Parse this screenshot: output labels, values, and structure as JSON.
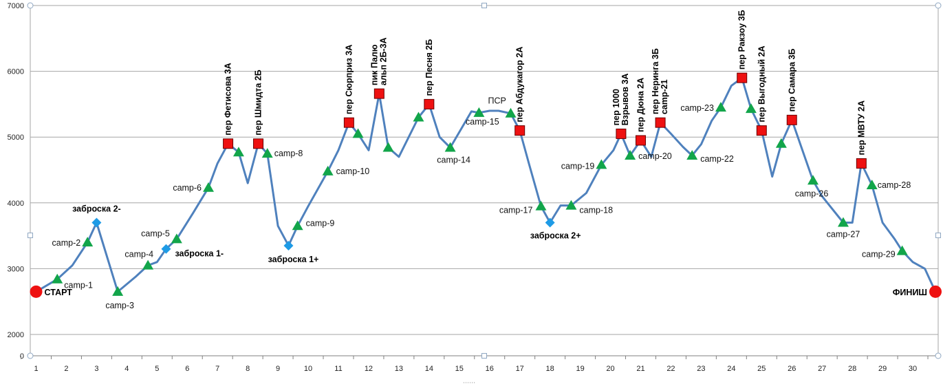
{
  "chart_data": {
    "type": "line",
    "title": "",
    "xlabel": "",
    "ylabel": "",
    "xlim": [
      0.5,
      31
    ],
    "ylim": [
      0,
      7000
    ],
    "broken_y_axis": true,
    "y_ticks": [
      "0",
      "2000",
      "3000",
      "4000",
      "5000",
      "6000",
      "7000"
    ],
    "x_ticks": [
      "1",
      "2",
      "3",
      "4",
      "5",
      "6",
      "7",
      "8",
      "9",
      "10",
      "11",
      "12",
      "13",
      "14",
      "15",
      "16",
      "17",
      "18",
      "19",
      "20",
      "21",
      "22",
      "23",
      "24",
      "25",
      "26",
      "27",
      "28",
      "29",
      "30"
    ],
    "grid": "horizontal",
    "line_color": "#4f81bd",
    "marker_colors": {
      "camp": "#12a54a",
      "pass": "#ee1111",
      "cache": "#1e9be6",
      "endpoint": "#ee1111"
    },
    "series": [
      {
        "points": [
          {
            "x": 1.0,
            "y": 2650
          },
          {
            "x": 1.7,
            "y": 2840,
            "kind": "camp",
            "label": "camp-1"
          },
          {
            "x": 2.2,
            "y": 3050
          },
          {
            "x": 2.7,
            "y": 3400,
            "kind": "camp",
            "label": "camp-2"
          },
          {
            "x": 3.0,
            "y": 3700,
            "kind": "cache",
            "label": "заброска 2-"
          },
          {
            "x": 3.7,
            "y": 2650,
            "kind": "camp",
            "label": "camp-3"
          },
          {
            "x": 4.3,
            "y": 2880
          },
          {
            "x": 4.7,
            "y": 3050,
            "kind": "camp",
            "label": "camp-4"
          },
          {
            "x": 5.0,
            "y": 3100
          },
          {
            "x": 5.3,
            "y": 3300,
            "kind": "cache",
            "label": "заброска 1-"
          },
          {
            "x": 5.65,
            "y": 3450,
            "kind": "camp",
            "label": "camp-5"
          },
          {
            "x": 6.2,
            "y": 3850
          },
          {
            "x": 6.7,
            "y": 4230,
            "kind": "camp",
            "label": "camp-6"
          },
          {
            "x": 7.0,
            "y": 4600
          },
          {
            "x": 7.35,
            "y": 4900,
            "kind": "pass",
            "label": "пер Фетисова  3А"
          },
          {
            "x": 7.7,
            "y": 4770,
            "kind": "camp"
          },
          {
            "x": 8.0,
            "y": 4300
          },
          {
            "x": 8.35,
            "y": 4900,
            "kind": "pass",
            "label": "пер Шмидта 2Б"
          },
          {
            "x": 8.65,
            "y": 4750,
            "kind": "camp",
            "label": "camp-8"
          },
          {
            "x": 9.0,
            "y": 3650
          },
          {
            "x": 9.35,
            "y": 3350,
            "kind": "cache",
            "label": "заброска 1+"
          },
          {
            "x": 9.65,
            "y": 3650,
            "kind": "camp",
            "label": "camp-9"
          },
          {
            "x": 10.0,
            "y": 3950
          },
          {
            "x": 10.65,
            "y": 4480,
            "kind": "camp",
            "label": "camp-10"
          },
          {
            "x": 11.0,
            "y": 4800
          },
          {
            "x": 11.35,
            "y": 5220,
            "kind": "pass",
            "label": "пер Сюрприз  3А"
          },
          {
            "x": 11.65,
            "y": 5050,
            "kind": "camp"
          },
          {
            "x": 12.0,
            "y": 4800
          },
          {
            "x": 12.35,
            "y": 5660,
            "kind": "pass",
            "label": "пик Палю",
            "label2": "альп 2Б-3А"
          },
          {
            "x": 12.65,
            "y": 4840,
            "kind": "camp"
          },
          {
            "x": 13.0,
            "y": 4700
          },
          {
            "x": 13.65,
            "y": 5300,
            "kind": "camp"
          },
          {
            "x": 14.0,
            "y": 5500,
            "kind": "pass",
            "label": "пер Песня  2Б"
          },
          {
            "x": 14.35,
            "y": 5000
          },
          {
            "x": 14.7,
            "y": 4840,
            "kind": "camp",
            "label": "camp-14"
          },
          {
            "x": 15.4,
            "y": 5390
          },
          {
            "x": 15.65,
            "y": 5370,
            "kind": "camp",
            "label": "camp-15"
          },
          {
            "x": 16.0,
            "y": 5400
          },
          {
            "x": 16.3,
            "y": 5400
          },
          {
            "x": 16.7,
            "y": 5360,
            "kind": "camp"
          },
          {
            "x": 17.0,
            "y": 5100,
            "kind": "pass",
            "label": "пер Абдукагор  2А"
          },
          {
            "x": 17.3,
            "y": 4600
          },
          {
            "x": 17.7,
            "y": 3950,
            "kind": "camp",
            "label": "camp-17"
          },
          {
            "x": 18.0,
            "y": 3700,
            "kind": "cache",
            "label": "заброска 2+"
          },
          {
            "x": 18.35,
            "y": 3960
          },
          {
            "x": 18.7,
            "y": 3960,
            "kind": "camp",
            "label": "camp-18"
          },
          {
            "x": 19.2,
            "y": 4150
          },
          {
            "x": 19.7,
            "y": 4580,
            "kind": "camp",
            "label": "camp-19"
          },
          {
            "x": 20.1,
            "y": 4800
          },
          {
            "x": 20.35,
            "y": 5050,
            "kind": "pass",
            "label": "пер 1000",
            "label2": "Взрывов 3А"
          },
          {
            "x": 20.65,
            "y": 4720,
            "kind": "camp",
            "label": "camp-20"
          },
          {
            "x": 21.0,
            "y": 4950,
            "kind": "pass",
            "label": "пер Дюна  2А"
          },
          {
            "x": 21.35,
            "y": 4700
          },
          {
            "x": 21.65,
            "y": 5220,
            "kind": "pass",
            "label": "пер Неринга  3Б",
            "label2": "camp-21"
          },
          {
            "x": 22.0,
            "y": 5050
          },
          {
            "x": 22.4,
            "y": 4850
          },
          {
            "x": 22.7,
            "y": 4720,
            "kind": "camp",
            "label": "camp-22"
          },
          {
            "x": 23.0,
            "y": 4890
          },
          {
            "x": 23.35,
            "y": 5250
          },
          {
            "x": 23.65,
            "y": 5450,
            "kind": "camp",
            "label": "camp-23"
          },
          {
            "x": 24.0,
            "y": 5780
          },
          {
            "x": 24.35,
            "y": 5900,
            "kind": "pass",
            "label": "пер Ракзоу 3Б"
          },
          {
            "x": 24.65,
            "y": 5430,
            "kind": "camp"
          },
          {
            "x": 25.0,
            "y": 5100,
            "kind": "pass",
            "label": "пер Выгодный  2А"
          },
          {
            "x": 25.35,
            "y": 4400
          },
          {
            "x": 25.65,
            "y": 4900,
            "kind": "camp"
          },
          {
            "x": 26.0,
            "y": 5260,
            "kind": "pass",
            "label": "пер Самара  3Б"
          },
          {
            "x": 26.35,
            "y": 4800
          },
          {
            "x": 26.7,
            "y": 4340,
            "kind": "camp",
            "label": "camp-26"
          },
          {
            "x": 27.0,
            "y": 4100
          },
          {
            "x": 27.7,
            "y": 3700,
            "kind": "camp",
            "label": "camp-27"
          },
          {
            "x": 28.0,
            "y": 3700
          },
          {
            "x": 28.3,
            "y": 4600,
            "kind": "pass",
            "label": "пер МВТУ 2А"
          },
          {
            "x": 28.65,
            "y": 4270,
            "kind": "camp",
            "label": "camp-28"
          },
          {
            "x": 29.0,
            "y": 3700
          },
          {
            "x": 29.4,
            "y": 3450
          },
          {
            "x": 29.65,
            "y": 3270,
            "kind": "camp",
            "label": "camp-29"
          },
          {
            "x": 30.0,
            "y": 3100
          },
          {
            "x": 30.4,
            "y": 3000
          },
          {
            "x": 30.75,
            "y": 2650
          }
        ]
      }
    ],
    "endpoints": [
      {
        "label": "СТАРТ",
        "x": 1.0,
        "y": 2650
      },
      {
        "label": "ФИНИШ",
        "x": 30.75,
        "y": 2650
      }
    ],
    "annotations": [
      {
        "text": "ПСР",
        "x": 16.25,
        "y": 5510
      }
    ]
  }
}
